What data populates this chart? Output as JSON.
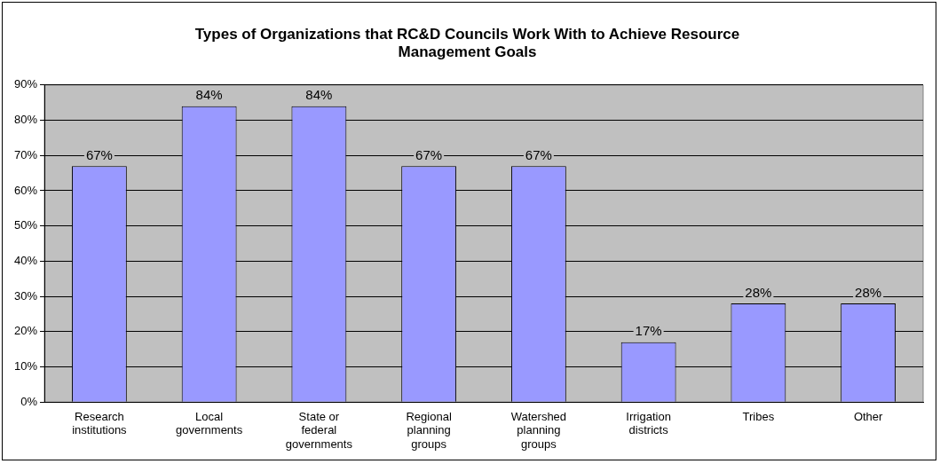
{
  "chart_data": {
    "type": "bar",
    "title": "Types of Organizations that RC&D Councils Work With to Achieve Resource Management Goals",
    "categories": [
      "Research institutions",
      "Local governments",
      "State or federal governments",
      "Regional planning groups",
      "Watershed planning groups",
      "Irrigation districts",
      "Tribes",
      "Other"
    ],
    "values": [
      67,
      84,
      84,
      67,
      67,
      17,
      28,
      28
    ],
    "value_labels": [
      "67%",
      "84%",
      "84%",
      "67%",
      "67%",
      "17%",
      "28%",
      "28%"
    ],
    "color": "#9999ff",
    "ylim": [
      0,
      90
    ],
    "yticks": [
      {
        "value": 0,
        "label": "0%"
      },
      {
        "value": 10,
        "label": "10%"
      },
      {
        "value": 20,
        "label": "20%"
      },
      {
        "value": 30,
        "label": "30%"
      },
      {
        "value": 40,
        "label": "40%"
      },
      {
        "value": 50,
        "label": "50%"
      },
      {
        "value": 60,
        "label": "60%"
      },
      {
        "value": 70,
        "label": "70%"
      },
      {
        "value": 80,
        "label": "80%"
      },
      {
        "value": 90,
        "label": "90%"
      }
    ],
    "grid": "y",
    "legend": false
  }
}
